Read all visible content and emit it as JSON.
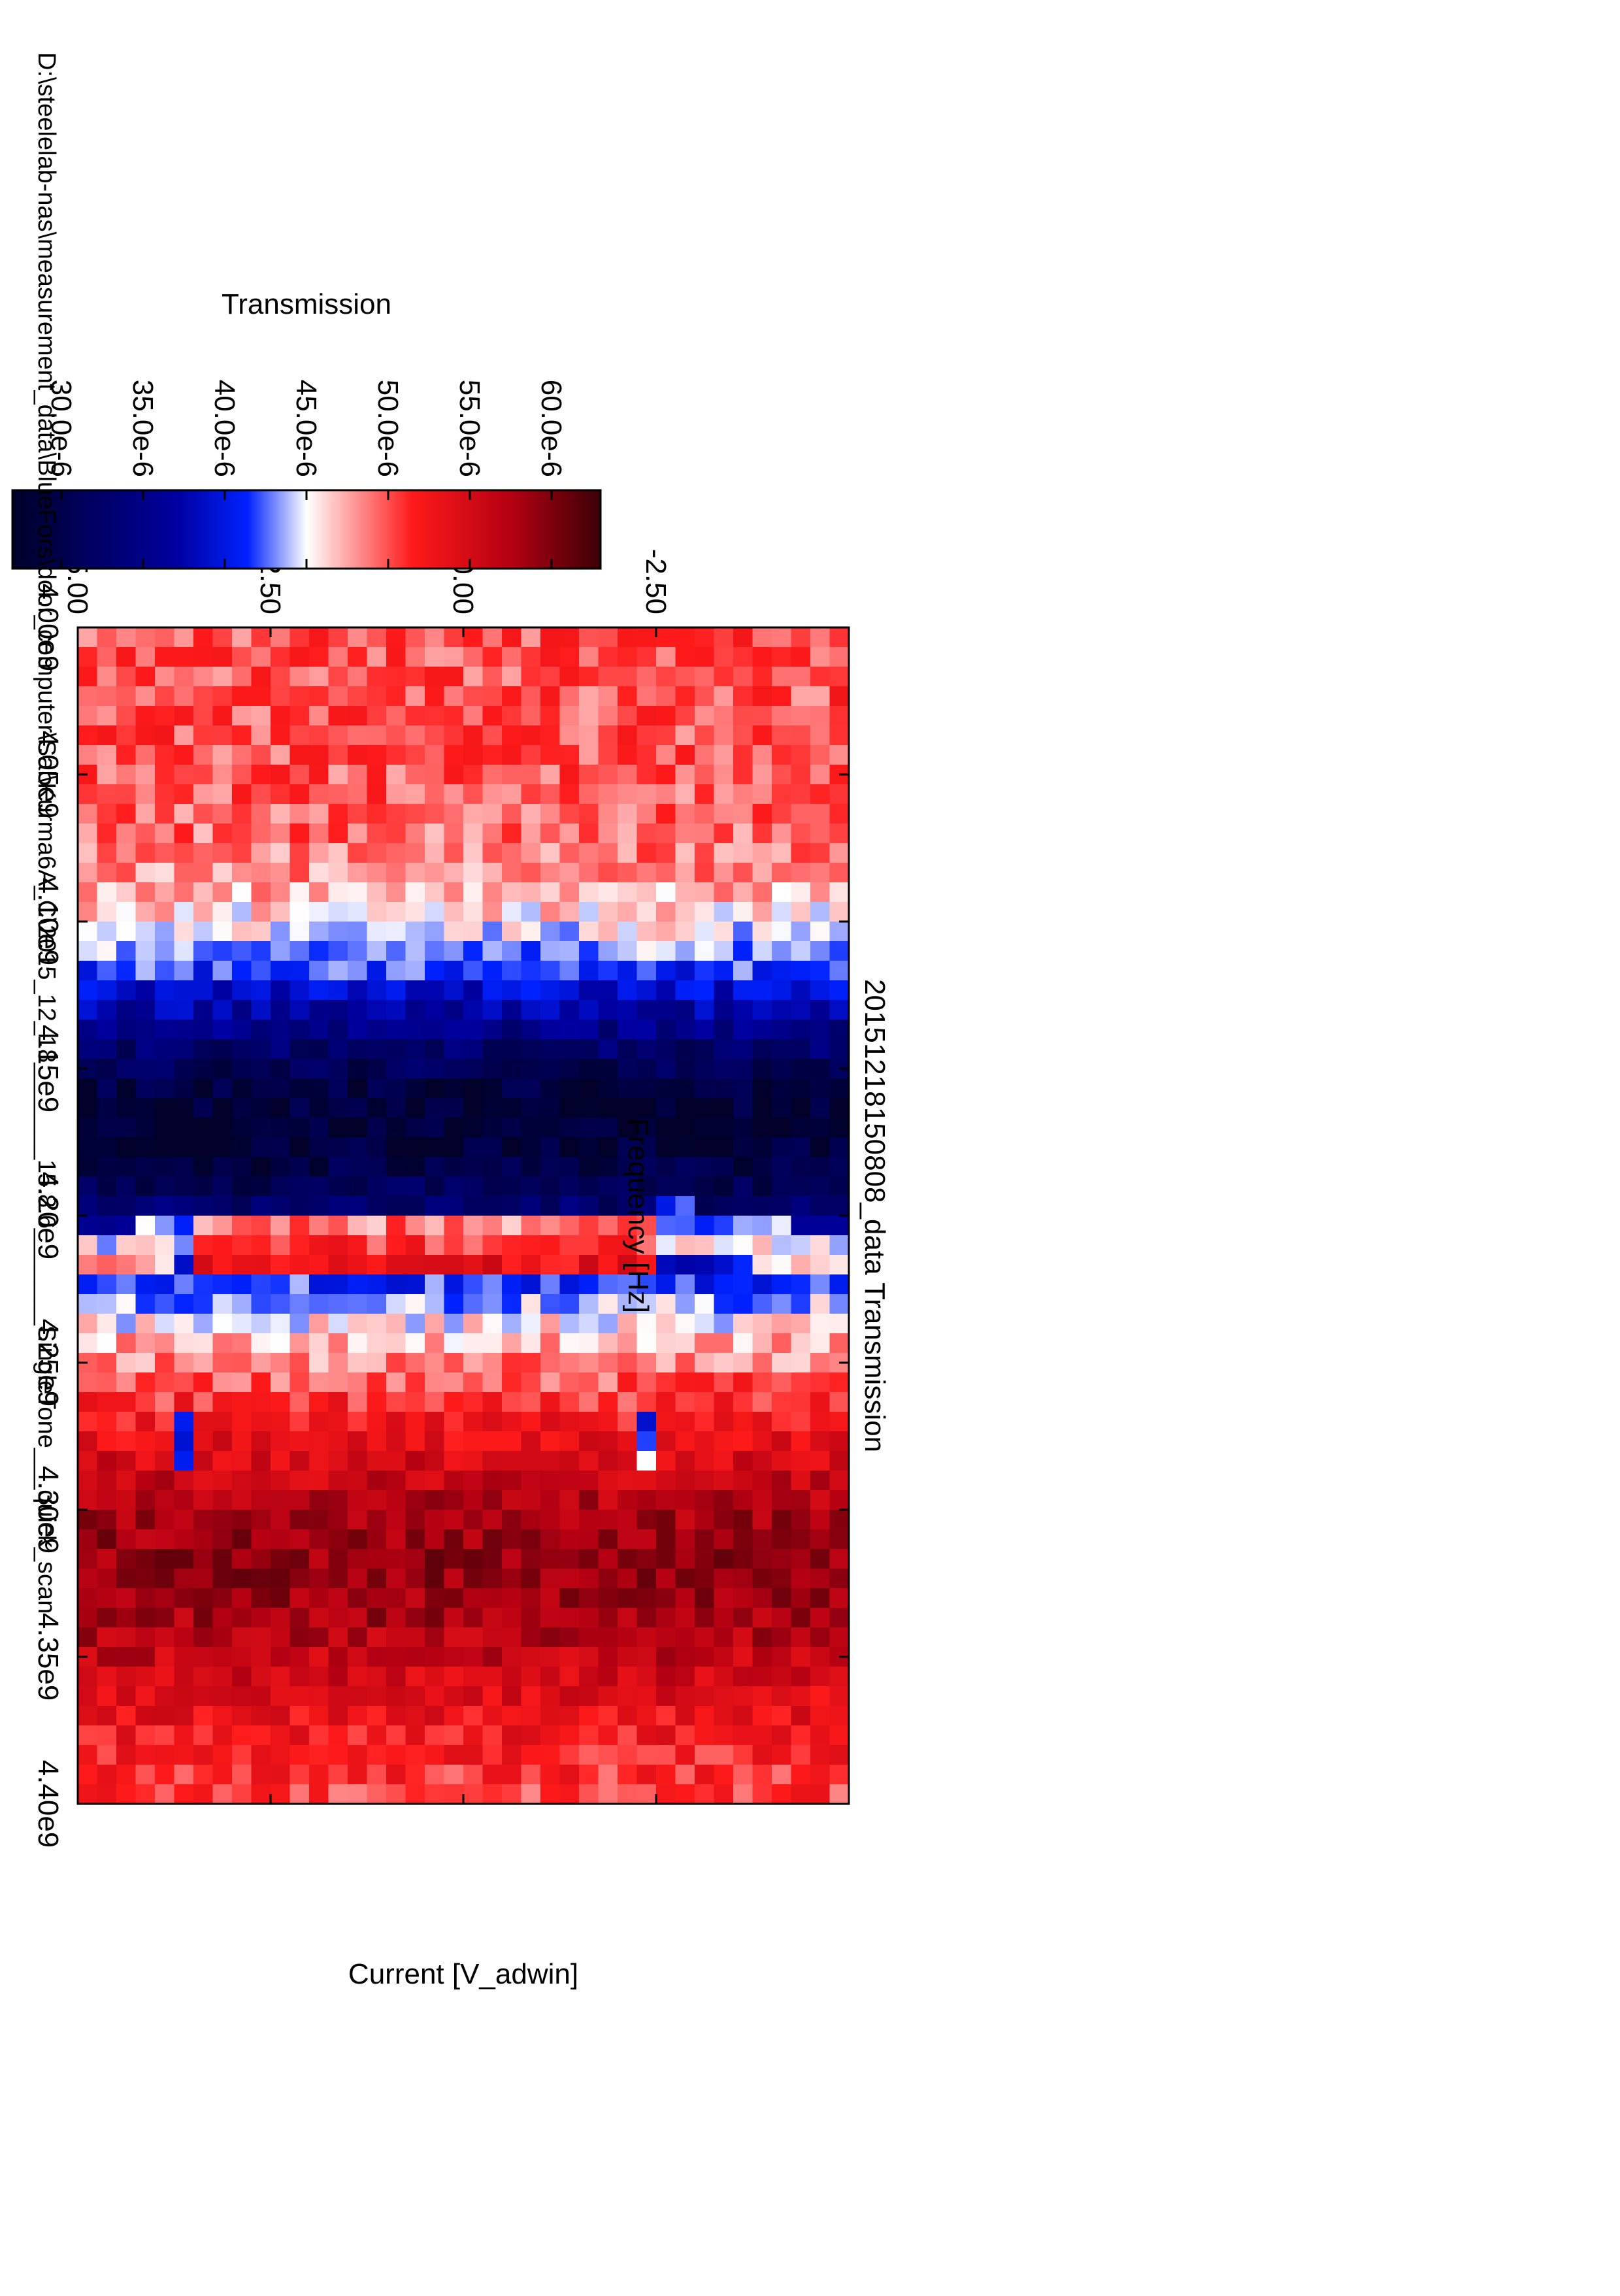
{
  "chart_data": {
    "type": "heatmap",
    "title": "20151218150808_data Transmission",
    "xlabel": "Frequency [Hz]",
    "ylabel": "Current [V_adwin]",
    "colorbar_label": "Transmission",
    "footer": "D:\\steelelab-nas\\measurement_data\\BlueFors\\door_computer\\Sal\\Kurma6A_C\\2015_12_18_______15.8.6_______SingleTone___quick_scan",
    "x_range": [
      4000000000.0,
      4400000000.0
    ],
    "x_ticks": [
      4000000000.0,
      4050000000.0,
      4100000000.0,
      4150000000.0,
      4200000000.0,
      4250000000.0,
      4300000000.0,
      4350000000.0,
      4400000000.0
    ],
    "x_tick_labels": [
      "4.00e9",
      "4.05e9",
      "4.10e9",
      "4.15e9",
      "4.20e9",
      "4.25e9",
      "4.30e9",
      "4.35e9",
      "4.40e9"
    ],
    "y_range": [
      -5.0,
      5.0
    ],
    "y_ticks": [
      -2.5,
      0.0,
      2.5,
      5.0
    ],
    "y_tick_labels": [
      "-2.50",
      "0.00",
      "2.50",
      "5.00"
    ],
    "colorbar_range": [
      2.7e-05,
      6.3e-05
    ],
    "colorbar_ticks": [
      3e-05,
      3.5e-05,
      4e-05,
      4.5e-05,
      5e-05,
      5.5e-05,
      6e-05
    ],
    "colorbar_tick_labels": [
      "30.0e-6",
      "35.0e-6",
      "40.0e-6",
      "45.0e-6",
      "50.0e-6",
      "55.0e-6",
      "60.0e-6"
    ],
    "colormap": [
      {
        "pos": 0.0,
        "color": "#000028"
      },
      {
        "pos": 0.28,
        "color": "#0000a0"
      },
      {
        "pos": 0.4,
        "color": "#0022ff"
      },
      {
        "pos": 0.5,
        "color": "#ffffff"
      },
      {
        "pos": 0.68,
        "color": "#ff1a1a"
      },
      {
        "pos": 0.85,
        "color": "#b30012"
      },
      {
        "pos": 1.0,
        "color": "#3c0006"
      }
    ],
    "grid": false,
    "rotation": "plot rotated 90 degrees clockwise on the page",
    "cells": {
      "nx": 60,
      "ny": 40
    },
    "features": {
      "baseline_transmission": 5e-05,
      "dip_center_frequency": 4170000000.0,
      "dip_width_hz": 55000000.0,
      "dip_depth": 2.2e-05,
      "peak_center_frequency": 4320000000.0,
      "peak_width_hz": 50000000.0,
      "peak_height": 9e-06,
      "mode_frequency_bright": 4210000000.0,
      "mode_dip_frequency": 4190000000.0,
      "mode_current_jumps": [
        -2.5,
        3.6
      ],
      "spurious_lines": [
        {
          "current": -2.4,
          "f_start": 4265000000.0,
          "f_end": 4285000000.0
        },
        {
          "current": 3.6,
          "f_start": 4265000000.0,
          "f_end": 4285000000.0
        }
      ]
    }
  }
}
